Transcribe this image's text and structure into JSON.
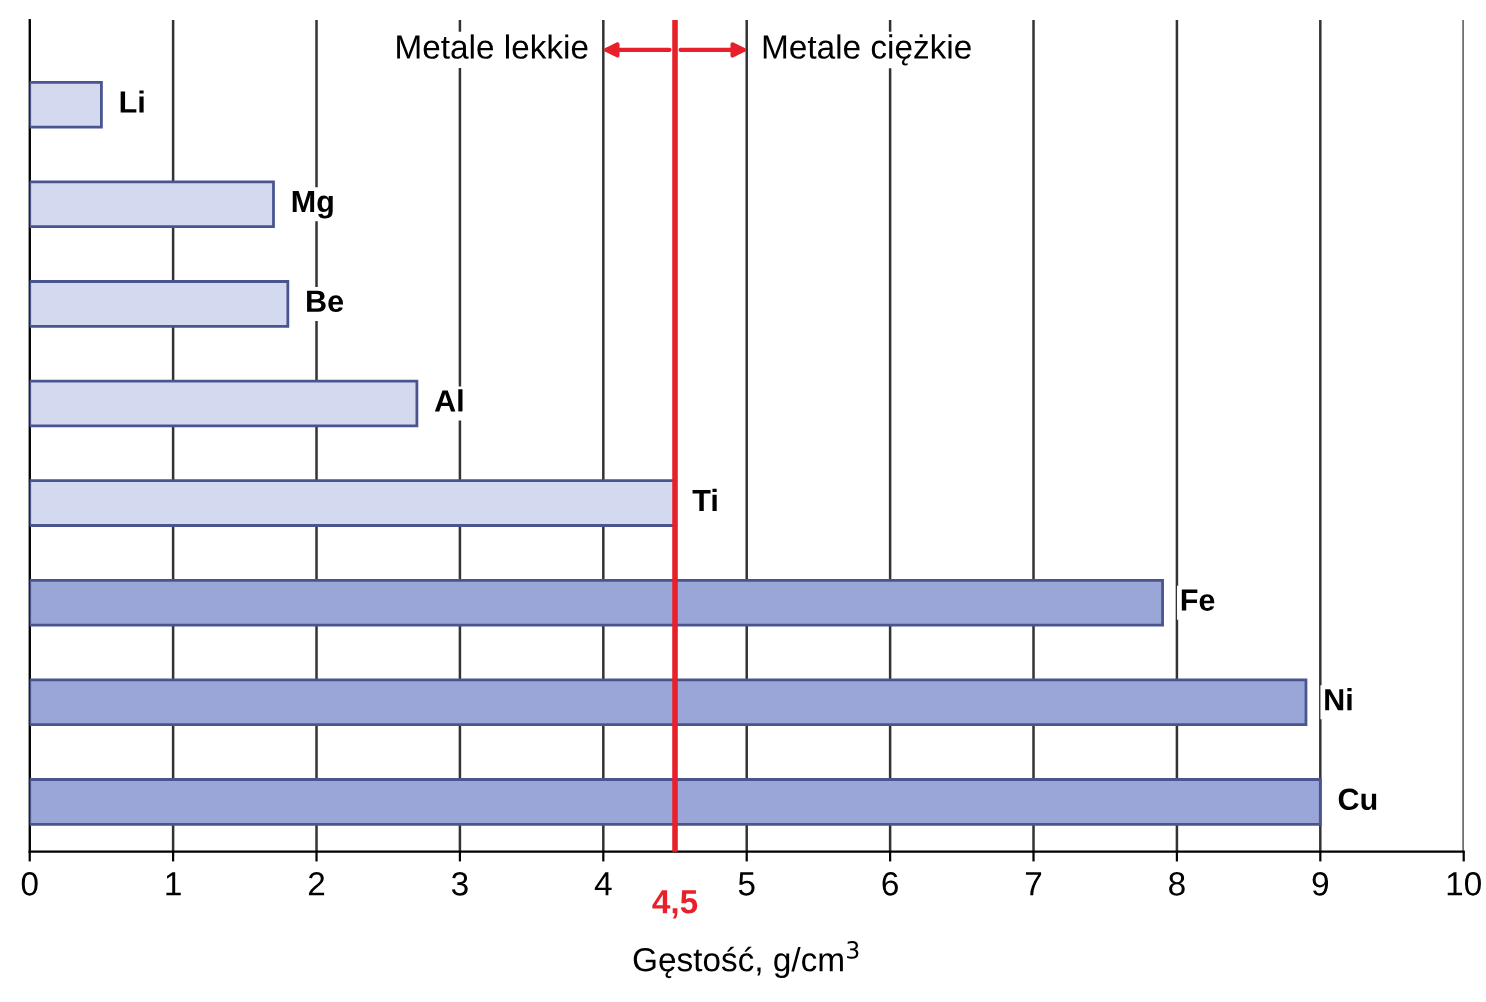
{
  "chart_data": {
    "type": "bar",
    "orientation": "horizontal",
    "categories": [
      "Li",
      "Mg",
      "Be",
      "Al",
      "Ti",
      "Fe",
      "Ni",
      "Cu"
    ],
    "values": [
      0.5,
      1.7,
      1.8,
      2.7,
      4.5,
      7.9,
      8.9,
      9.0
    ],
    "colors": [
      "#d3daf0",
      "#d3daf0",
      "#d3daf0",
      "#d3daf0",
      "#d3daf0",
      "#9aa5d8",
      "#9aa5d8",
      "#9aa5d8"
    ],
    "xlim": [
      0,
      10
    ],
    "xticks": [
      0,
      1,
      2,
      3,
      4,
      5,
      6,
      7,
      8,
      9,
      10
    ],
    "xlabel": "Gęstość, g/cm$^{3}$",
    "grid": "x",
    "ref_lines": [
      {
        "axis": "x",
        "value": 4.5,
        "label": "4,5",
        "color": "#e8202a"
      }
    ],
    "annotations": [
      "Metale lekkie",
      "Metale ciężkie"
    ]
  }
}
